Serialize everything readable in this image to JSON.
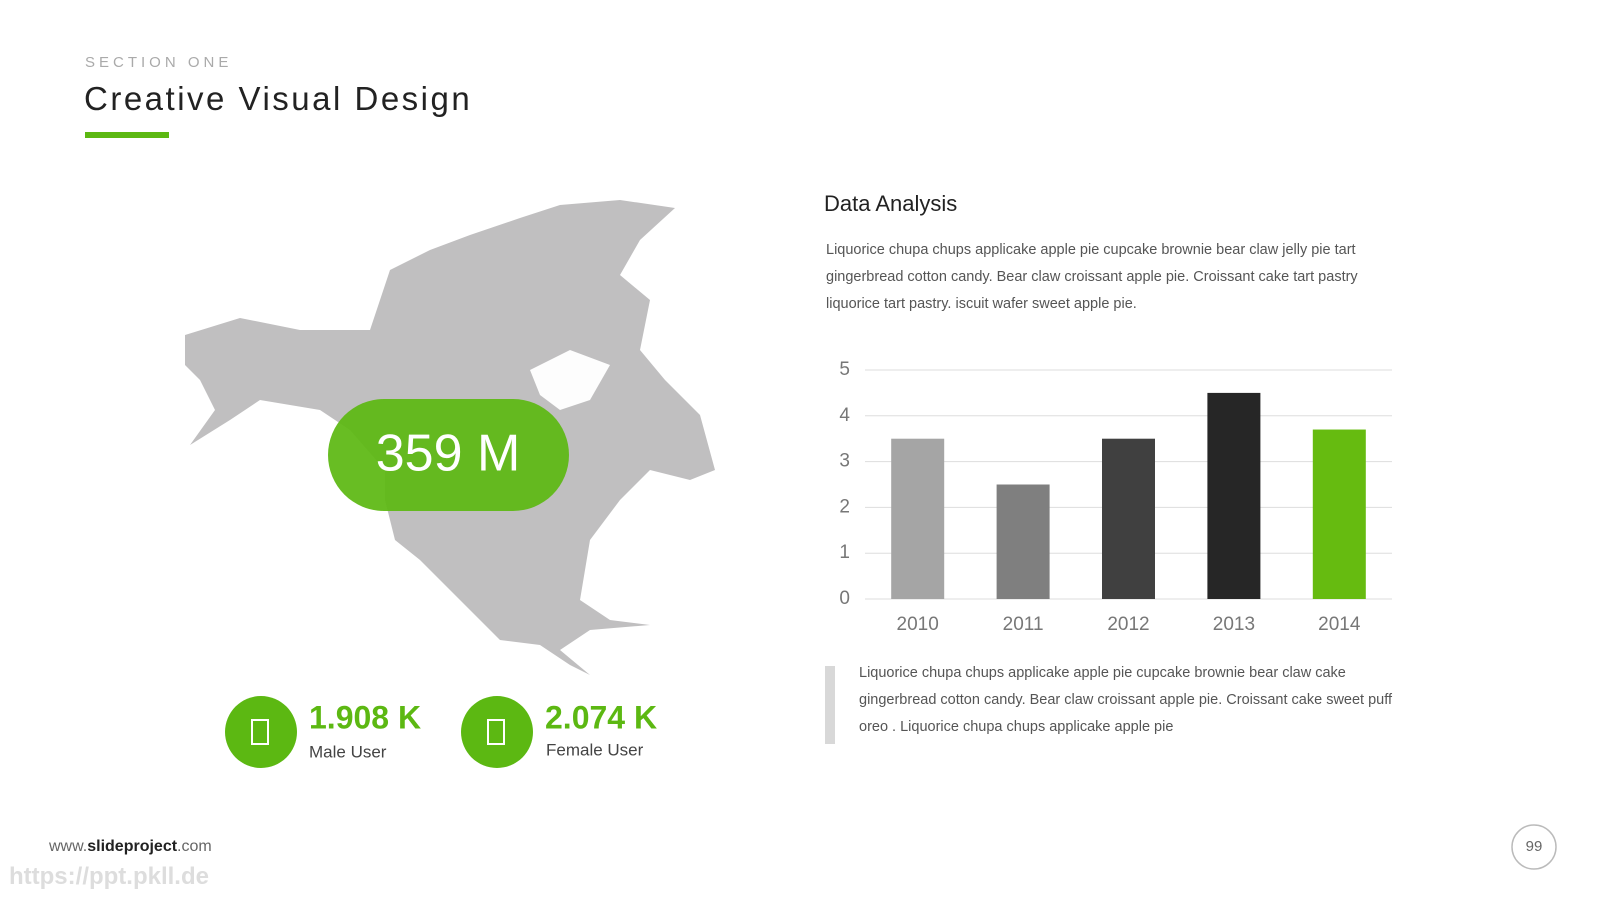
{
  "section": "SECTION ONE",
  "title": "Creative Visual Design",
  "map_stat": "359 M",
  "stats": [
    {
      "value": "1.908 K",
      "label": "Male User"
    },
    {
      "value": "2.074 K",
      "label": "Female User"
    }
  ],
  "heading": "Data Analysis",
  "paragraph": "Liquorice chupa chups applicake apple pie cupcake brownie bear claw jelly pie tart gingerbread cotton candy. Bear claw croissant apple pie. Croissant cake tart pastry liquorice tart pastry. iscuit wafer sweet apple pie.",
  "quote": "Liquorice chupa chups applicake apple pie cupcake brownie bear claw  cake gingerbread cotton candy. Bear claw croissant apple pie. Croissant cake sweet puff oreo . Liquorice chupa chups applicake apple pie",
  "footer": {
    "prefix": "www.",
    "brand": "slideproject",
    "suffix": ".com"
  },
  "page_number": "99",
  "watermark": "https://ppt.pkll.de",
  "chart_data": {
    "type": "bar",
    "categories": [
      "2010",
      "2011",
      "2012",
      "2013",
      "2014"
    ],
    "values": [
      3.5,
      2.5,
      3.5,
      4.5,
      3.7
    ],
    "colors": [
      "#a5a5a5",
      "#7f7f7f",
      "#404040",
      "#262626",
      "#66bb10"
    ],
    "ylim": [
      0,
      5
    ],
    "yticks": [
      0,
      1,
      2,
      3,
      4,
      5
    ],
    "grid": true
  }
}
